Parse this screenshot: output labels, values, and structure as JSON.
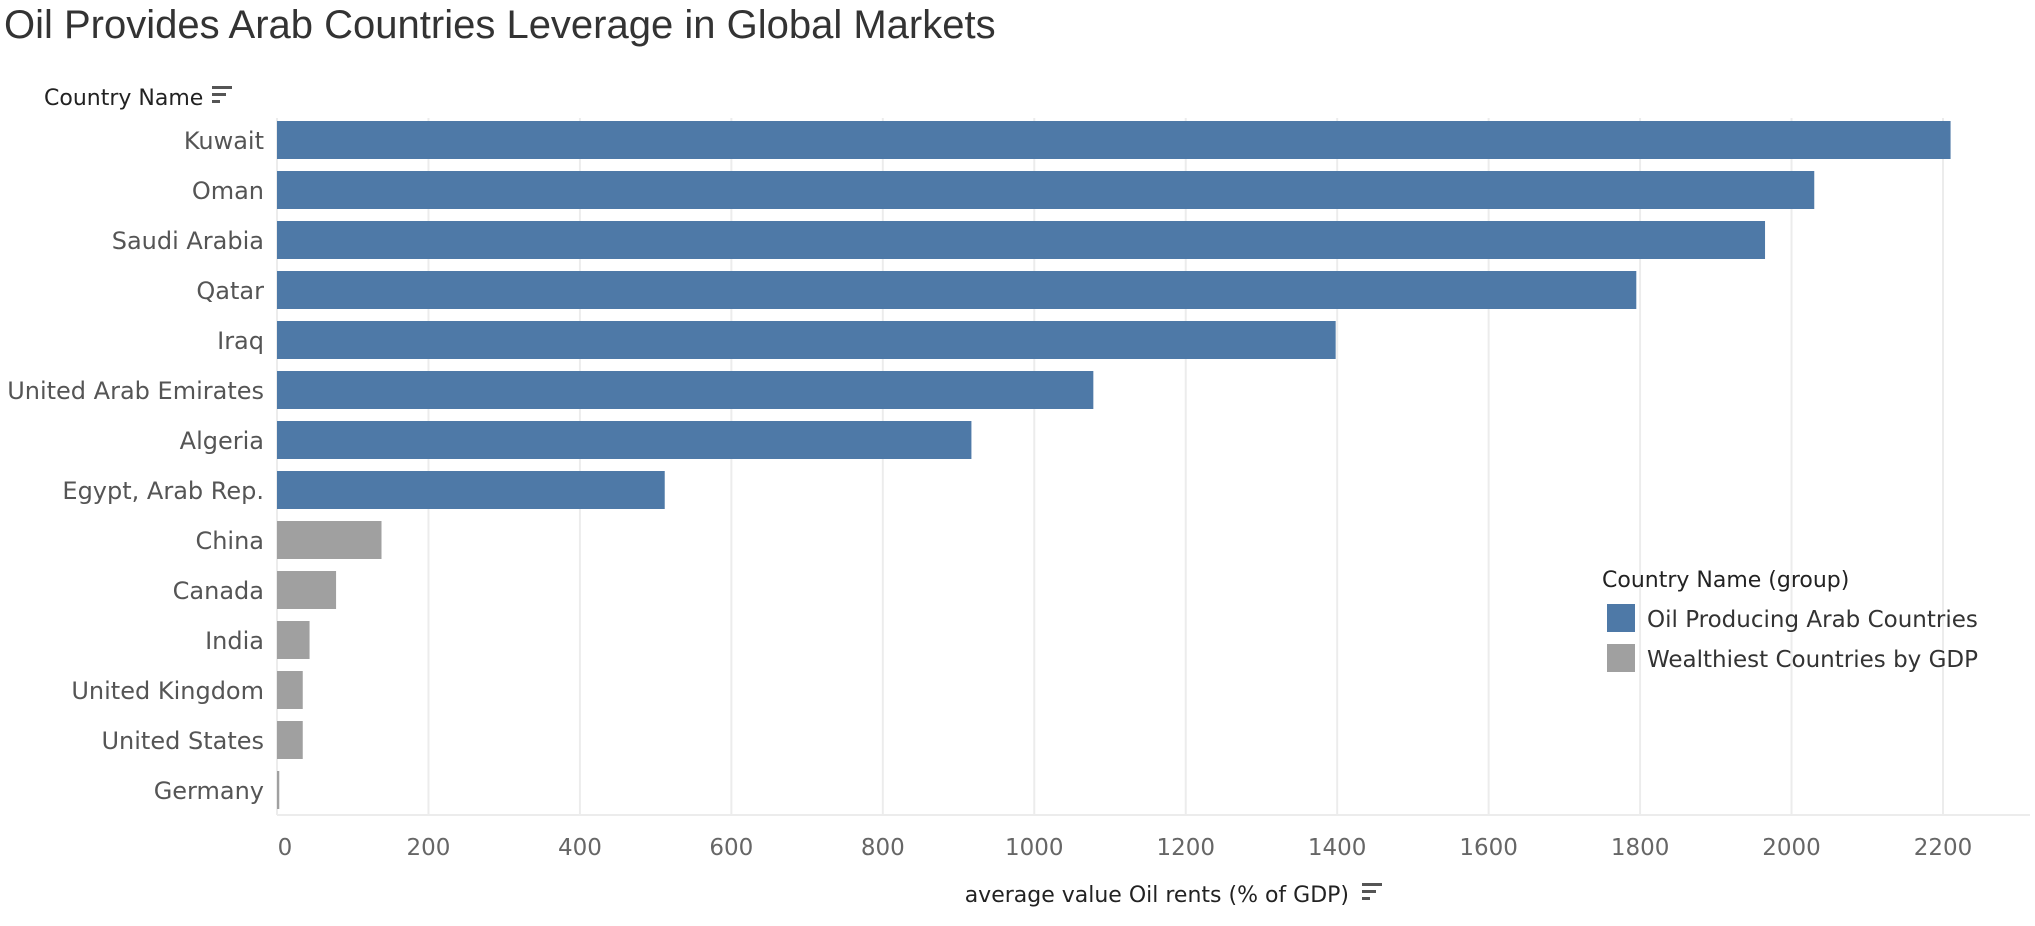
{
  "chart_data": {
    "type": "bar",
    "orientation": "horizontal",
    "title": "Oil Provides Arab Countries Leverage in Global Markets",
    "ylabel": "Country Name",
    "xlabel": "average value Oil rents (% of GDP)",
    "xlim": [
      0,
      2300
    ],
    "x_ticks": [
      "0",
      "200",
      "400",
      "600",
      "800",
      "1000",
      "1200",
      "1400",
      "1600",
      "1800",
      "2000",
      "2200"
    ],
    "categories": [
      "Kuwait",
      "Oman",
      "Saudi Arabia",
      "Qatar",
      "Iraq",
      "United Arab Emirates",
      "Algeria",
      "Egypt, Arab Rep.",
      "China",
      "Canada",
      "India",
      "United Kingdom",
      "United States",
      "Germany"
    ],
    "values": [
      2210,
      2030,
      1965,
      1795,
      1398,
      1078,
      917,
      512,
      138,
      78,
      43,
      34,
      34,
      3
    ],
    "groups": [
      "Oil Producing Arab Countries",
      "Oil Producing Arab Countries",
      "Oil Producing Arab Countries",
      "Oil Producing Arab Countries",
      "Oil Producing Arab Countries",
      "Oil Producing Arab Countries",
      "Oil Producing Arab Countries",
      "Oil Producing Arab Countries",
      "Wealthiest Countries by GDP",
      "Wealthiest Countries by GDP",
      "Wealthiest Countries by GDP",
      "Wealthiest Countries by GDP",
      "Wealthiest Countries by GDP",
      "Wealthiest Countries by GDP"
    ],
    "legend": {
      "title": "Country Name (group)",
      "placement": "right",
      "items": [
        {
          "label": "Oil Producing Arab Countries",
          "color": "#4e79a7"
        },
        {
          "label": "Wealthiest Countries by GDP",
          "color": "#a0a0a0"
        }
      ]
    },
    "grid": true
  },
  "icons": {
    "y_sort": "sort-icon",
    "x_sort": "sort-icon"
  }
}
